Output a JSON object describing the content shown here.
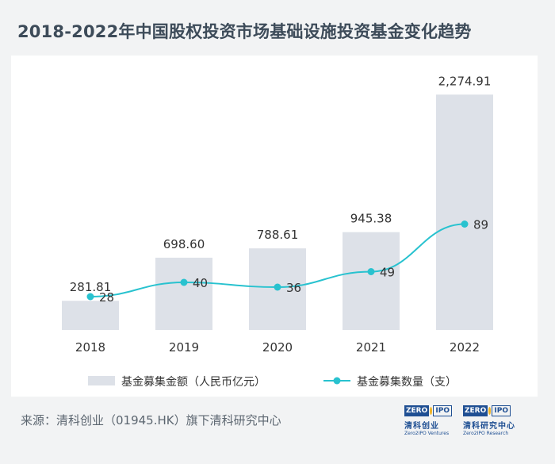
{
  "title": "2018-2022年中国股权投资市场基础设施投资基金变化趋势",
  "chart_data": {
    "type": "bar",
    "categories": [
      "2018",
      "2019",
      "2020",
      "2021",
      "2022"
    ],
    "series": [
      {
        "name": "基金募集金额（人民币亿元）",
        "kind": "bar",
        "values": [
          281.81,
          698.6,
          788.61,
          945.38,
          2274.91
        ],
        "labels": [
          "281.81",
          "698.60",
          "788.61",
          "945.38",
          "2,274.91"
        ]
      },
      {
        "name": "基金募集数量（支）",
        "kind": "line",
        "values": [
          28,
          40,
          36,
          49,
          89
        ],
        "labels": [
          "28",
          "40",
          "36",
          "49",
          "89"
        ]
      }
    ],
    "bar_ylim": [
      0,
      2300
    ],
    "line_ylim": [
      0,
      200
    ],
    "legend_position": "bottom",
    "grid": false
  },
  "colors": {
    "bar": "#dde1e8",
    "line": "#28c2cf",
    "text": "#333333"
  },
  "source": "来源：清科创业（01945.HK）旗下清科研究中心",
  "logos": [
    {
      "zero": "ZERO",
      "ipo": "IPO",
      "cn": "清科创业",
      "en": "Zero2IPO Ventures"
    },
    {
      "zero": "ZERO",
      "ipo": "IPO",
      "cn": "清科研究中心",
      "en": "Zero2IPO Research"
    }
  ]
}
